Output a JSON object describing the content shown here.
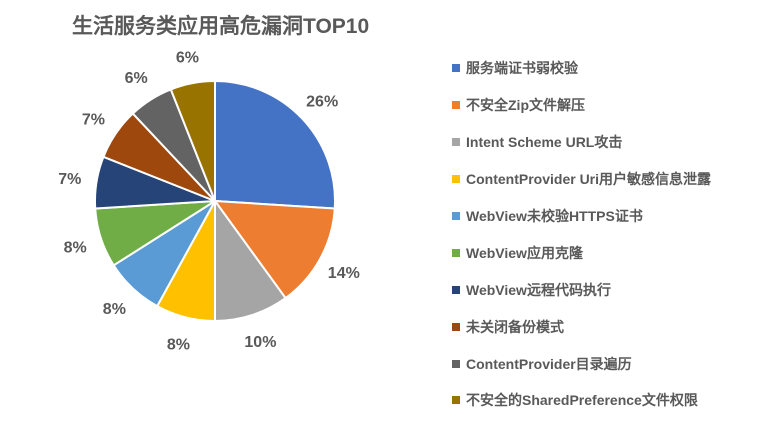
{
  "chart_data": {
    "type": "pie",
    "title": "生活服务类应用高危漏洞TOP10",
    "categories": [
      "服务端证书弱校验",
      "不安全Zip文件解压",
      "Intent Scheme URL攻击",
      "ContentProvider Uri用户敏感信息泄露",
      "WebView未校验HTTPS证书",
      "WebView应用克隆",
      "WebView远程代码执行",
      "未关闭备份模式",
      "ContentProvider目录遍历",
      "不安全的SharedPreference文件权限"
    ],
    "values": [
      26,
      14,
      10,
      8,
      8,
      8,
      7,
      7,
      6,
      6
    ],
    "labels": [
      "26%",
      "14%",
      "10%",
      "8%",
      "8%",
      "8%",
      "7%",
      "7%",
      "6%",
      "6%"
    ],
    "colors": [
      "#4472C4",
      "#ED7D31",
      "#A5A5A5",
      "#FFC000",
      "#5B9BD5",
      "#70AD47",
      "#264478",
      "#9E480E",
      "#636363",
      "#997300"
    ],
    "legend_position": "right"
  }
}
